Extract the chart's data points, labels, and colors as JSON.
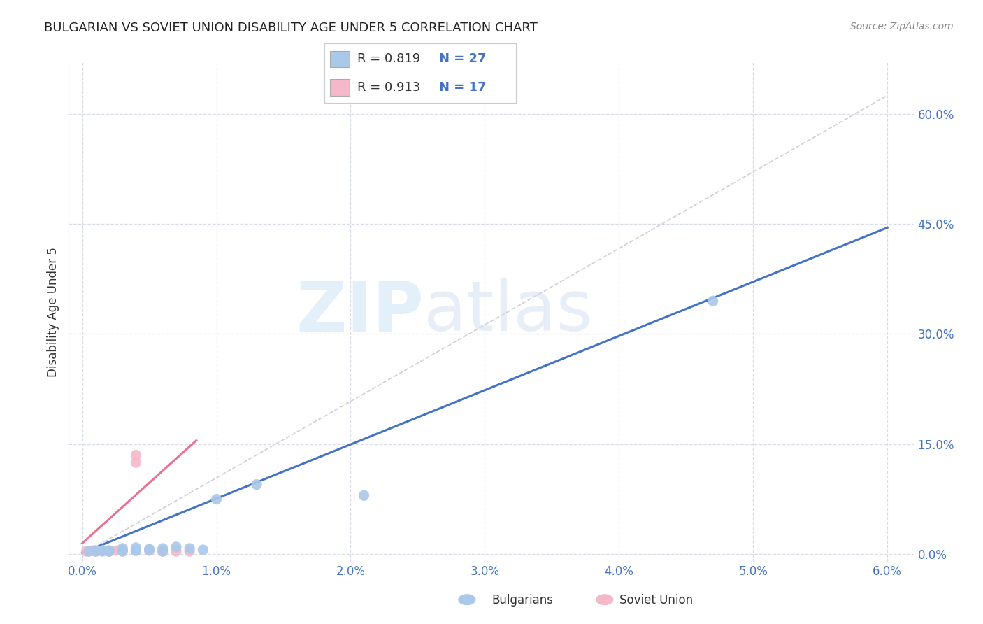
{
  "title": "BULGARIAN VS SOVIET UNION DISABILITY AGE UNDER 5 CORRELATION CHART",
  "source": "Source: ZipAtlas.com",
  "xlabel_label": "Bulgarians",
  "xlabel_label2": "Soviet Union",
  "ylabel": "Disability Age Under 5",
  "xlim": [
    -0.001,
    0.062
  ],
  "ylim": [
    -0.01,
    0.67
  ],
  "xticks": [
    0.0,
    0.01,
    0.02,
    0.03,
    0.04,
    0.05,
    0.06
  ],
  "yticks": [
    0.0,
    0.15,
    0.3,
    0.45,
    0.6
  ],
  "ytick_labels": [
    "0.0%",
    "15.0%",
    "30.0%",
    "45.0%",
    "60.0%"
  ],
  "xtick_labels": [
    "0.0%",
    "1.0%",
    "2.0%",
    "3.0%",
    "4.0%",
    "5.0%",
    "6.0%"
  ],
  "blue_color": "#aac8ea",
  "pink_color": "#f4b8c8",
  "blue_line_color": "#4472c4",
  "pink_line_color": "#e87090",
  "ref_line_color": "#c8c8d8",
  "legend_R1": "R = 0.819",
  "legend_N1": "N = 27",
  "legend_R2": "R = 0.913",
  "legend_N2": "N = 17",
  "watermark_zip": "ZIP",
  "watermark_atlas": "atlas",
  "background_color": "#ffffff",
  "grid_color": "#d8dce8",
  "blue_scatter_x": [
    0.0005,
    0.001,
    0.001,
    0.0015,
    0.0015,
    0.002,
    0.002,
    0.002,
    0.002,
    0.003,
    0.003,
    0.003,
    0.003,
    0.004,
    0.004,
    0.004,
    0.005,
    0.005,
    0.006,
    0.006,
    0.007,
    0.008,
    0.009,
    0.01,
    0.013,
    0.021,
    0.047
  ],
  "blue_scatter_y": [
    0.004,
    0.004,
    0.005,
    0.004,
    0.005,
    0.004,
    0.004,
    0.005,
    0.005,
    0.004,
    0.005,
    0.006,
    0.008,
    0.005,
    0.005,
    0.009,
    0.006,
    0.007,
    0.004,
    0.008,
    0.01,
    0.008,
    0.006,
    0.075,
    0.095,
    0.08,
    0.345
  ],
  "pink_scatter_x": [
    0.0003,
    0.0005,
    0.0008,
    0.001,
    0.001,
    0.001,
    0.0015,
    0.002,
    0.002,
    0.0025,
    0.003,
    0.004,
    0.004,
    0.005,
    0.006,
    0.007,
    0.008
  ],
  "pink_scatter_y": [
    0.004,
    0.004,
    0.005,
    0.004,
    0.004,
    0.005,
    0.005,
    0.004,
    0.004,
    0.005,
    0.004,
    0.125,
    0.135,
    0.005,
    0.004,
    0.004,
    0.004
  ],
  "blue_line_x": [
    0.0,
    0.06
  ],
  "blue_line_y": [
    0.002,
    0.445
  ],
  "pink_line_x": [
    0.0,
    0.0085
  ],
  "pink_line_y": [
    0.015,
    0.155
  ],
  "ref_line_x": [
    0.0,
    0.06
  ],
  "ref_line_y": [
    0.0,
    0.625
  ],
  "title_color": "#222222",
  "axis_label_color": "#333333",
  "tick_color_y": "#4472c4",
  "tick_color_x": "#4472c4",
  "source_color": "#888888",
  "legend_text_color": "#333333",
  "legend_num_color": "#4472c4"
}
